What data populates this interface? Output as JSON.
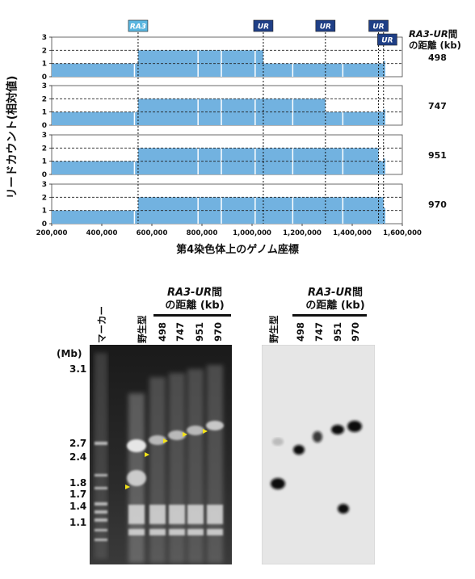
{
  "top": {
    "y_axis_label": "リードカウント(相対値)",
    "x_axis_label": "第4染色体上のゲノム座標",
    "right_header_italic": "RA3-UR",
    "right_header_rest": "間",
    "right_header_line2": "の距離 (kb)",
    "markers": [
      {
        "label": "RA3",
        "color": "#5ab6e0"
      },
      {
        "label": "UR",
        "color": "#1f3f86"
      },
      {
        "label": "UR",
        "color": "#1f3f86"
      },
      {
        "label": "UR",
        "color": "#1f3f86"
      },
      {
        "label": "UR",
        "color": "#1f3f86"
      }
    ]
  },
  "chart_data": {
    "type": "area",
    "xlabel": "第4染色体上のゲノム座標",
    "ylabel": "リードカウント(相対値)",
    "xlim": [
      200000,
      1600000
    ],
    "ylim": [
      0,
      3
    ],
    "x_ticks": [
      "200,000",
      "400,000",
      "600,000",
      "800,000",
      "1,000,000",
      "1,200,000",
      "1,400,000",
      "1,600,000"
    ],
    "y_ticks": [
      "0",
      "1",
      "2",
      "3"
    ],
    "dashed_levels": [
      1,
      2
    ],
    "bar_color": "#72b2e0",
    "ra3_position": 545000,
    "dotted_positions": [
      545000,
      1045000,
      1293000,
      1505000,
      1525000
    ],
    "series": [
      {
        "name": "498",
        "segments": [
          [
            200000,
            545000,
            1
          ],
          [
            545000,
            1045000,
            2
          ],
          [
            1045000,
            1525000,
            1
          ]
        ],
        "end": 1532000
      },
      {
        "name": "747",
        "segments": [
          [
            200000,
            545000,
            1
          ],
          [
            545000,
            1293000,
            2
          ],
          [
            1293000,
            1525000,
            1
          ]
        ],
        "end": 1532000
      },
      {
        "name": "951",
        "segments": [
          [
            200000,
            545000,
            1
          ],
          [
            545000,
            1505000,
            2
          ],
          [
            1505000,
            1525000,
            1
          ]
        ],
        "end": 1532000
      },
      {
        "name": "970",
        "segments": [
          [
            200000,
            545000,
            1
          ],
          [
            545000,
            1525000,
            2
          ]
        ],
        "end": 1532000
      }
    ]
  },
  "gel_left": {
    "header_italic": "RA3-UR",
    "header_rest": "間",
    "header_line2": "の距離 (kb)",
    "lanes": [
      "マーカー",
      "野生型",
      "498",
      "747",
      "951",
      "970"
    ],
    "unit": "(Mb)",
    "sizes": [
      "3.1",
      "2.7",
      "2.4",
      "1.8",
      "1.7",
      "1.4",
      "1.1"
    ]
  },
  "gel_right": {
    "header_italic": "RA3-UR",
    "header_rest": "間",
    "header_line2": "の距離 (kb)",
    "lanes": [
      "野生型",
      "498",
      "747",
      "951",
      "970"
    ]
  }
}
